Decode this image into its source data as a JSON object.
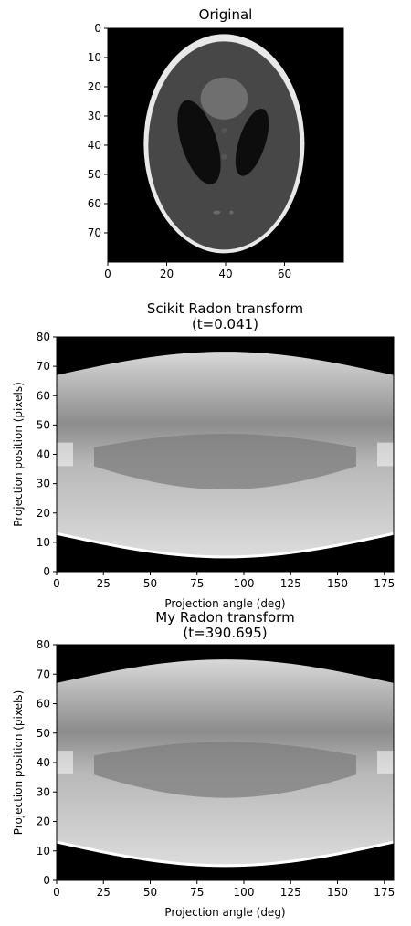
{
  "chart_data": [
    {
      "type": "heatmap",
      "title": "Original",
      "image": "Shepp-Logan phantom",
      "xlabel": "",
      "ylabel": "",
      "xlim": [
        0,
        80
      ],
      "ylim": [
        80,
        0
      ],
      "xticks": [
        "0",
        "20",
        "40",
        "60"
      ],
      "yticks": [
        "0",
        "10",
        "20",
        "30",
        "40",
        "50",
        "60",
        "70"
      ],
      "colormap": "gray",
      "grid": false
    },
    {
      "type": "heatmap",
      "title": "Scikit Radon transform",
      "subtitle": "(t=0.041)",
      "image": "sinogram",
      "xlabel": "Projection angle (deg)",
      "ylabel": "Projection position (pixels)",
      "xlim": [
        0,
        180
      ],
      "ylim": [
        0,
        80
      ],
      "xticks": [
        "0",
        "25",
        "50",
        "75",
        "100",
        "125",
        "150",
        "175"
      ],
      "yticks": [
        "0",
        "10",
        "20",
        "30",
        "40",
        "50",
        "60",
        "70",
        "80"
      ],
      "colormap": "gray",
      "grid": false
    },
    {
      "type": "heatmap",
      "title": "My Radon transform",
      "subtitle": "(t=390.695)",
      "image": "sinogram",
      "xlabel": "Projection angle (deg)",
      "ylabel": "Projection position (pixels)",
      "xlim": [
        0,
        180
      ],
      "ylim": [
        0,
        80
      ],
      "xticks": [
        "0",
        "25",
        "50",
        "75",
        "100",
        "125",
        "150",
        "175"
      ],
      "yticks": [
        "0",
        "10",
        "20",
        "30",
        "40",
        "50",
        "60",
        "70",
        "80"
      ],
      "colormap": "gray",
      "grid": false
    }
  ]
}
